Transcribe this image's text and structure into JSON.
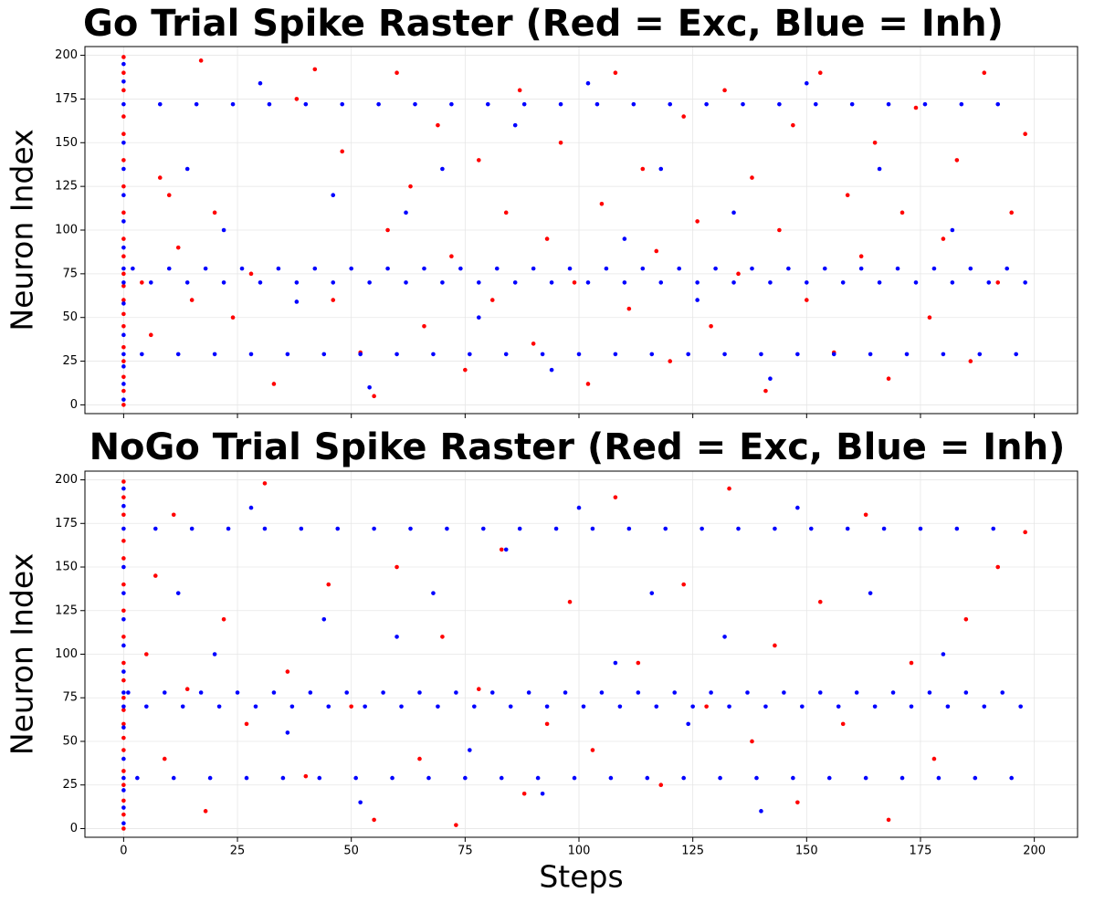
{
  "chart_data": [
    {
      "type": "scatter",
      "title": "Go Trial Spike Raster (Red = Exc, Blue = Inh)",
      "ylabel": "Neuron Index",
      "xlim": [
        -8.5,
        209.5
      ],
      "ylim": [
        -5,
        205
      ],
      "yticks": [
        0,
        25,
        50,
        75,
        100,
        125,
        150,
        175,
        200
      ],
      "grid": true,
      "series": [
        {
          "color": "#ff0000",
          "x": [
            0,
            0,
            0,
            0,
            0,
            0,
            0,
            0,
            0,
            0,
            0,
            0,
            0,
            0,
            0,
            0,
            0,
            0,
            0,
            0,
            4,
            6,
            8,
            10,
            12,
            15,
            17,
            20,
            24,
            28,
            33,
            38,
            42,
            46,
            48,
            52,
            55,
            58,
            60,
            63,
            66,
            69,
            72,
            75,
            78,
            81,
            84,
            87,
            90,
            93,
            96,
            99,
            102,
            105,
            108,
            111,
            114,
            117,
            120,
            123,
            126,
            129,
            132,
            135,
            138,
            141,
            144,
            147,
            150,
            153,
            156,
            159,
            162,
            165,
            168,
            171,
            174,
            177,
            180,
            183,
            186,
            189,
            192,
            195,
            198
          ],
          "y": [
            0,
            8,
            16,
            25,
            33,
            45,
            52,
            60,
            68,
            75,
            85,
            95,
            110,
            125,
            140,
            155,
            165,
            180,
            190,
            199,
            70,
            40,
            130,
            120,
            90,
            60,
            197,
            110,
            50,
            75,
            12,
            175,
            192,
            60,
            145,
            30,
            5,
            100,
            190,
            125,
            45,
            160,
            85,
            20,
            140,
            60,
            110,
            180,
            35,
            95,
            150,
            70,
            12,
            115,
            190,
            55,
            135,
            88,
            25,
            165,
            105,
            45,
            180,
            75,
            130,
            8,
            100,
            160,
            60,
            190,
            30,
            120,
            85,
            150,
            15,
            110,
            170,
            50,
            95,
            140,
            25,
            190,
            70,
            110,
            155
          ]
        },
        {
          "color": "#0000ff",
          "x": [
            0,
            0,
            0,
            0,
            0,
            0,
            0,
            0,
            0,
            0,
            0,
            0,
            0,
            0,
            0,
            0,
            4,
            12,
            20,
            28,
            36,
            44,
            52,
            60,
            68,
            76,
            84,
            92,
            100,
            108,
            116,
            124,
            132,
            140,
            148,
            156,
            164,
            172,
            180,
            188,
            196,
            6,
            14,
            22,
            30,
            38,
            46,
            54,
            62,
            70,
            78,
            86,
            94,
            102,
            110,
            118,
            126,
            134,
            142,
            150,
            158,
            166,
            174,
            182,
            190,
            198,
            2,
            10,
            18,
            26,
            34,
            42,
            50,
            58,
            66,
            74,
            82,
            90,
            98,
            106,
            114,
            122,
            130,
            138,
            146,
            154,
            162,
            170,
            178,
            186,
            194,
            8,
            16,
            24,
            32,
            40,
            48,
            56,
            64,
            72,
            80,
            88,
            96,
            104,
            112,
            120,
            128,
            136,
            144,
            152,
            160,
            168,
            176,
            184,
            192,
            14,
            22,
            30,
            38,
            46,
            54,
            62,
            70,
            78,
            86,
            94,
            102,
            110,
            118,
            126,
            134,
            142,
            150,
            166,
            182
          ],
          "y": [
            3,
            12,
            22,
            29,
            40,
            58,
            70,
            78,
            90,
            105,
            120,
            135,
            150,
            172,
            185,
            195,
            29,
            29,
            29,
            29,
            29,
            29,
            29,
            29,
            29,
            29,
            29,
            29,
            29,
            29,
            29,
            29,
            29,
            29,
            29,
            29,
            29,
            29,
            29,
            29,
            29,
            70,
            70,
            70,
            70,
            70,
            70,
            70,
            70,
            70,
            70,
            70,
            70,
            70,
            70,
            70,
            70,
            70,
            70,
            70,
            70,
            70,
            70,
            70,
            70,
            70,
            78,
            78,
            78,
            78,
            78,
            78,
            78,
            78,
            78,
            78,
            78,
            78,
            78,
            78,
            78,
            78,
            78,
            78,
            78,
            78,
            78,
            78,
            78,
            78,
            78,
            172,
            172,
            172,
            172,
            172,
            172,
            172,
            172,
            172,
            172,
            172,
            172,
            172,
            172,
            172,
            172,
            172,
            172,
            172,
            172,
            172,
            172,
            172,
            172,
            135,
            100,
            184,
            59,
            120,
            10,
            110,
            135,
            50,
            160,
            20,
            184,
            95,
            135,
            60,
            110,
            15,
            184,
            135,
            100
          ]
        }
      ]
    },
    {
      "type": "scatter",
      "title": "NoGo Trial Spike Raster (Red = Exc, Blue = Inh)",
      "ylabel": "Neuron Index",
      "xlabel": "Steps",
      "xlim": [
        -8.5,
        209.5
      ],
      "ylim": [
        -5,
        205
      ],
      "yticks": [
        0,
        25,
        50,
        75,
        100,
        125,
        150,
        175,
        200
      ],
      "xticks": [
        0,
        25,
        50,
        75,
        100,
        125,
        150,
        175,
        200
      ],
      "grid": true,
      "series": [
        {
          "color": "#ff0000",
          "x": [
            0,
            0,
            0,
            0,
            0,
            0,
            0,
            0,
            0,
            0,
            0,
            0,
            0,
            0,
            0,
            0,
            0,
            0,
            0,
            0,
            5,
            7,
            9,
            11,
            14,
            18,
            22,
            27,
            31,
            36,
            40,
            45,
            50,
            55,
            60,
            65,
            70,
            73,
            78,
            83,
            88,
            93,
            98,
            103,
            108,
            113,
            118,
            123,
            128,
            133,
            138,
            143,
            148,
            153,
            158,
            163,
            168,
            173,
            178,
            185,
            192,
            198
          ],
          "y": [
            0,
            8,
            16,
            25,
            33,
            45,
            52,
            60,
            68,
            75,
            85,
            95,
            110,
            125,
            140,
            155,
            165,
            180,
            190,
            199,
            100,
            145,
            40,
            180,
            80,
            10,
            120,
            60,
            198,
            90,
            30,
            140,
            70,
            5,
            150,
            40,
            110,
            2,
            80,
            160,
            20,
            60,
            130,
            45,
            190,
            95,
            25,
            140,
            70,
            195,
            50,
            105,
            15,
            130,
            60,
            180,
            5,
            95,
            40,
            120,
            150,
            170
          ]
        },
        {
          "color": "#0000ff",
          "x": [
            0,
            0,
            0,
            0,
            0,
            0,
            0,
            0,
            0,
            0,
            0,
            0,
            0,
            0,
            0,
            0,
            3,
            11,
            19,
            27,
            35,
            43,
            51,
            59,
            67,
            75,
            83,
            91,
            99,
            107,
            115,
            123,
            131,
            139,
            147,
            155,
            163,
            171,
            179,
            187,
            195,
            5,
            13,
            21,
            29,
            37,
            45,
            53,
            61,
            69,
            77,
            85,
            93,
            101,
            109,
            117,
            125,
            133,
            141,
            149,
            157,
            165,
            173,
            181,
            189,
            197,
            1,
            9,
            17,
            25,
            33,
            41,
            49,
            57,
            65,
            73,
            81,
            89,
            97,
            105,
            113,
            121,
            129,
            137,
            145,
            153,
            161,
            169,
            177,
            185,
            193,
            7,
            15,
            23,
            31,
            39,
            47,
            55,
            63,
            71,
            79,
            87,
            95,
            103,
            111,
            119,
            127,
            135,
            143,
            151,
            159,
            167,
            175,
            183,
            191,
            12,
            20,
            28,
            36,
            44,
            52,
            60,
            68,
            76,
            84,
            92,
            100,
            108,
            116,
            124,
            132,
            140,
            148,
            164,
            180
          ],
          "y": [
            3,
            12,
            22,
            29,
            40,
            58,
            70,
            78,
            90,
            105,
            120,
            135,
            150,
            172,
            185,
            195,
            29,
            29,
            29,
            29,
            29,
            29,
            29,
            29,
            29,
            29,
            29,
            29,
            29,
            29,
            29,
            29,
            29,
            29,
            29,
            29,
            29,
            29,
            29,
            29,
            29,
            70,
            70,
            70,
            70,
            70,
            70,
            70,
            70,
            70,
            70,
            70,
            70,
            70,
            70,
            70,
            70,
            70,
            70,
            70,
            70,
            70,
            70,
            70,
            70,
            70,
            78,
            78,
            78,
            78,
            78,
            78,
            78,
            78,
            78,
            78,
            78,
            78,
            78,
            78,
            78,
            78,
            78,
            78,
            78,
            78,
            78,
            78,
            78,
            78,
            78,
            172,
            172,
            172,
            172,
            172,
            172,
            172,
            172,
            172,
            172,
            172,
            172,
            172,
            172,
            172,
            172,
            172,
            172,
            172,
            172,
            172,
            172,
            172,
            172,
            135,
            100,
            184,
            55,
            120,
            15,
            110,
            135,
            45,
            160,
            20,
            184,
            95,
            135,
            60,
            110,
            10,
            184,
            135,
            100
          ]
        }
      ]
    }
  ]
}
